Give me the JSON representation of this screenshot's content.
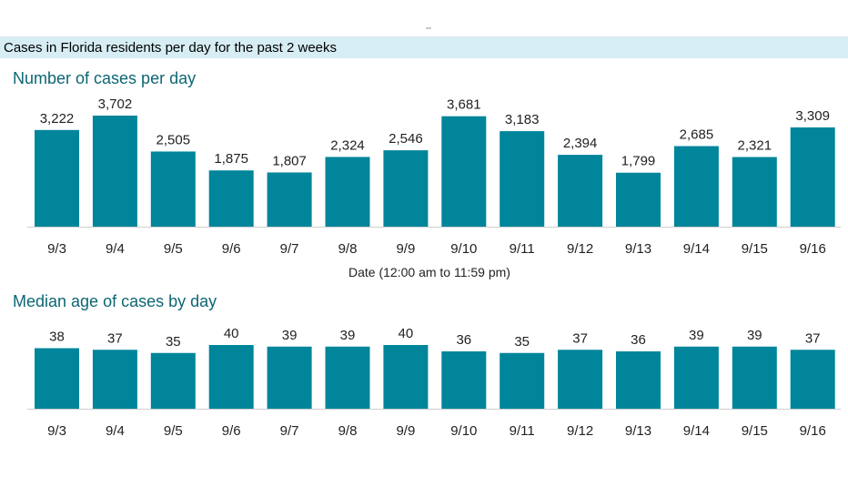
{
  "header": {
    "title": "Cases in Florida residents per day for the past 2 weeks"
  },
  "colors": {
    "bar": "#00859b",
    "title": "#0d6673",
    "header_band": "#d6edf3"
  },
  "chart_data": [
    {
      "type": "bar",
      "title": "Number of cases per day",
      "xlabel": "Date (12:00 am to 11:59 pm)",
      "ylabel": "",
      "categories": [
        "9/3",
        "9/4",
        "9/5",
        "9/6",
        "9/7",
        "9/8",
        "9/9",
        "9/10",
        "9/11",
        "9/12",
        "9/13",
        "9/14",
        "9/15",
        "9/16"
      ],
      "values": [
        3222,
        3702,
        2505,
        1875,
        1807,
        2324,
        2546,
        3681,
        3183,
        2394,
        1799,
        2685,
        2321,
        3309
      ],
      "value_labels": [
        "3,222",
        "3,702",
        "2,505",
        "1,875",
        "1,807",
        "2,324",
        "2,546",
        "3,681",
        "3,183",
        "2,394",
        "1,799",
        "2,685",
        "2,321",
        "3,309"
      ],
      "ylim": [
        0,
        3702
      ]
    },
    {
      "type": "bar",
      "title": "Median age of cases by day",
      "xlabel": "",
      "ylabel": "",
      "categories": [
        "9/3",
        "9/4",
        "9/5",
        "9/6",
        "9/7",
        "9/8",
        "9/9",
        "9/10",
        "9/11",
        "9/12",
        "9/13",
        "9/14",
        "9/15",
        "9/16"
      ],
      "values": [
        38,
        37,
        35,
        40,
        39,
        39,
        40,
        36,
        35,
        37,
        36,
        39,
        39,
        37
      ],
      "value_labels": [
        "38",
        "37",
        "35",
        "40",
        "39",
        "39",
        "40",
        "36",
        "35",
        "37",
        "36",
        "39",
        "39",
        "37"
      ],
      "ylim": [
        0,
        40
      ]
    }
  ]
}
